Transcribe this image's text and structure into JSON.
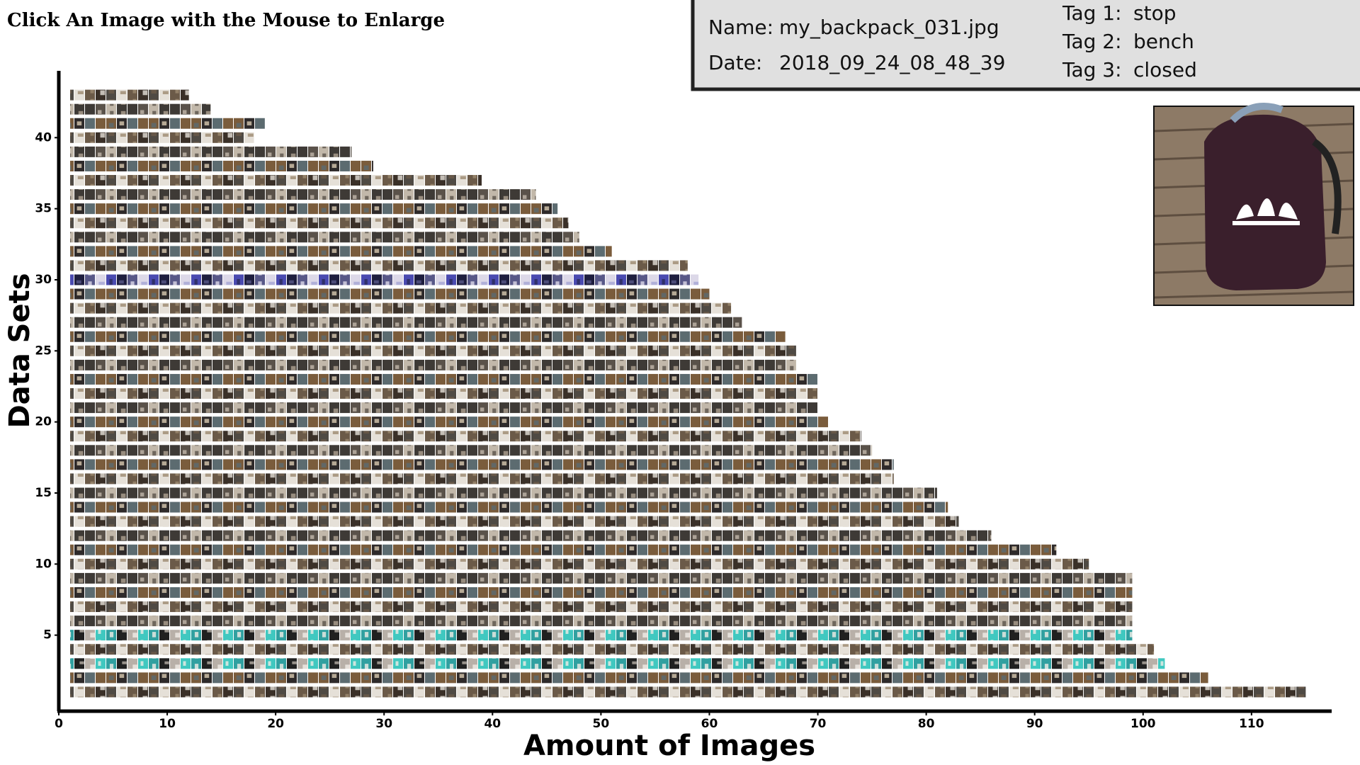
{
  "chart_data": {
    "type": "barh",
    "title": "Click An Image with the Mouse to Enlarge",
    "xlabel": "Amount of Images",
    "ylabel": "Data Sets",
    "y": [
      1,
      2,
      3,
      4,
      5,
      6,
      7,
      8,
      9,
      10,
      11,
      12,
      13,
      14,
      15,
      16,
      17,
      18,
      19,
      20,
      21,
      22,
      23,
      24,
      25,
      26,
      27,
      28,
      29,
      30,
      31,
      32,
      33,
      34,
      35,
      36,
      37,
      38,
      39,
      40,
      41,
      42,
      43
    ],
    "values": [
      115,
      106,
      102,
      101,
      99,
      99,
      99,
      99,
      99,
      95,
      92,
      86,
      83,
      82,
      81,
      77,
      77,
      75,
      74,
      71,
      70,
      70,
      70,
      68,
      68,
      67,
      63,
      62,
      60,
      59,
      58,
      51,
      48,
      47,
      46,
      44,
      39,
      29,
      27,
      18,
      19,
      14,
      12
    ],
    "xlim": [
      0,
      117
    ],
    "xticks": [
      0,
      10,
      20,
      30,
      40,
      50,
      60,
      70,
      80,
      90,
      100,
      110
    ],
    "ylim": [
      0,
      44.7
    ],
    "yticks": [
      5,
      10,
      15,
      20,
      25,
      30,
      35,
      40
    ]
  },
  "info": {
    "name_label": "Name:",
    "name": "my_backpack_031.jpg",
    "date_label": "Date:",
    "date": "2018_09_24_08_48_39",
    "tags": [
      {
        "label": "Tag 1:",
        "value": "stop"
      },
      {
        "label": "Tag 2:",
        "value": "bench"
      },
      {
        "label": "Tag 3:",
        "value": "closed"
      }
    ]
  }
}
